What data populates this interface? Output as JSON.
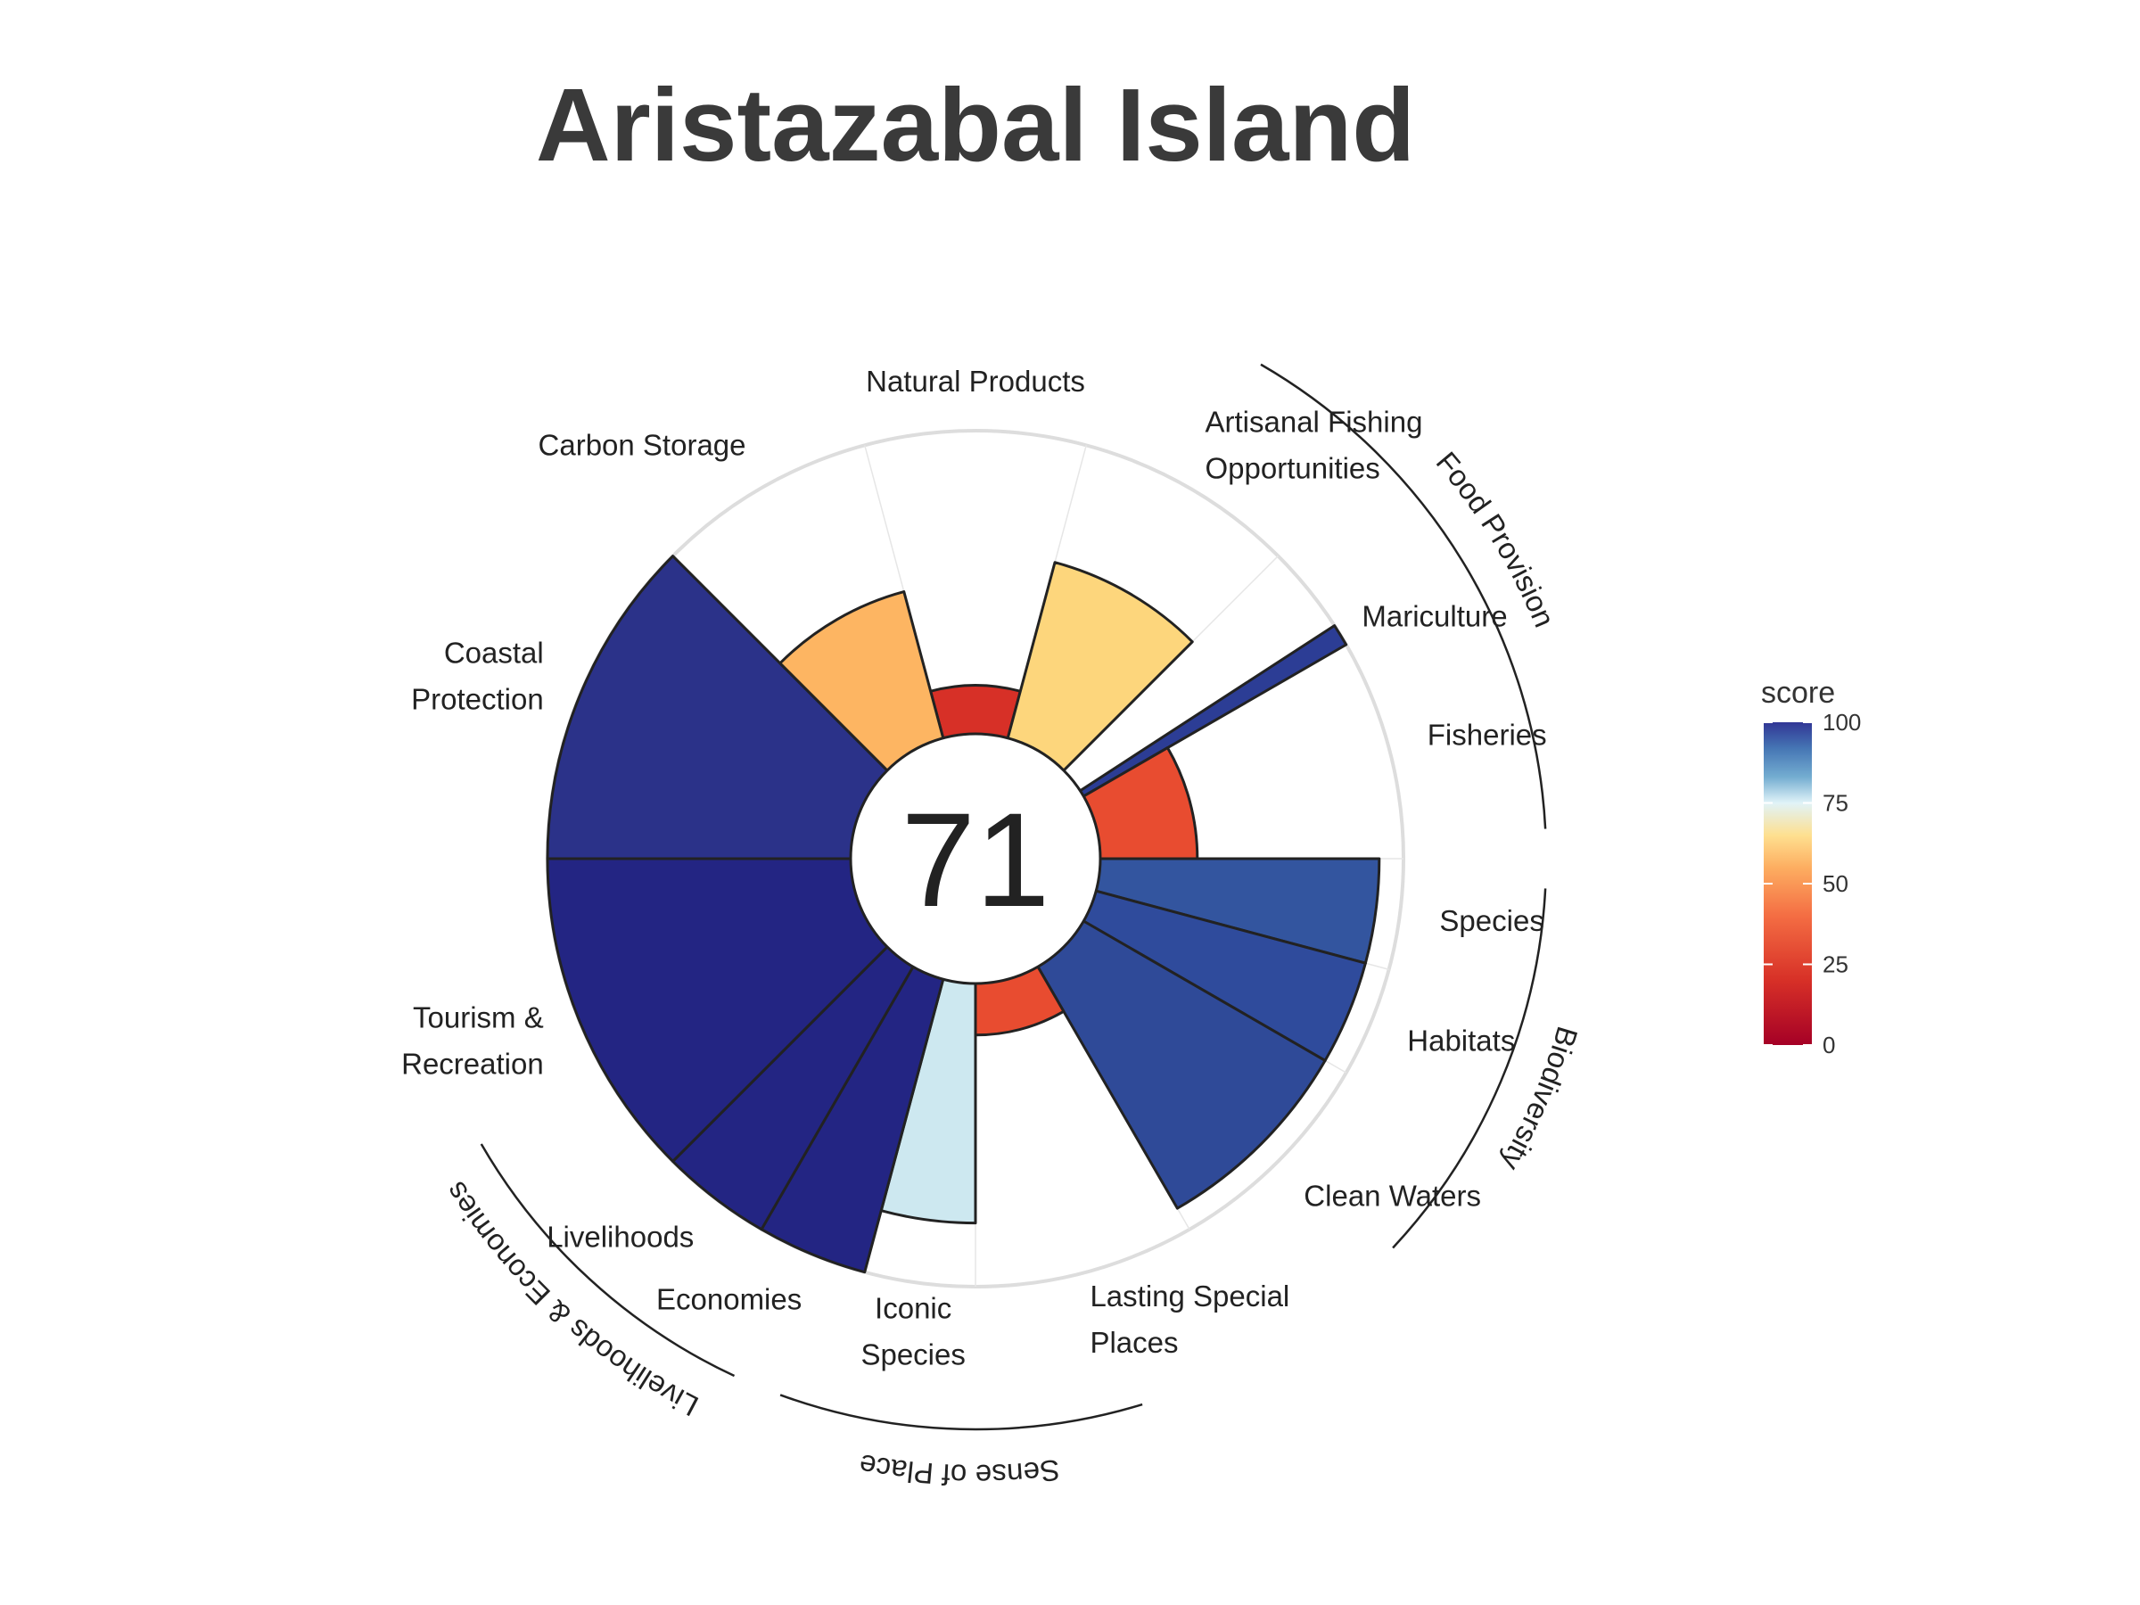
{
  "chart_data": {
    "type": "polar-bar",
    "title": "Aristazabal Island",
    "center_score": "71",
    "rmax": 100,
    "colorscale": {
      "title": "score",
      "ticks": [
        "0",
        "25",
        "50",
        "75",
        "100"
      ],
      "stops": [
        {
          "v": 0,
          "c": "#a50026"
        },
        {
          "v": 20,
          "c": "#d73027"
        },
        {
          "v": 40,
          "c": "#f46d43"
        },
        {
          "v": 55,
          "c": "#fdae61"
        },
        {
          "v": 65,
          "c": "#fee090"
        },
        {
          "v": 75,
          "c": "#e0f3f8"
        },
        {
          "v": 83,
          "c": "#74add1"
        },
        {
          "v": 92,
          "c": "#4575b4"
        },
        {
          "v": 100,
          "c": "#313695"
        }
      ]
    },
    "goals": [
      {
        "label": [
          "Natural Products"
        ],
        "start": -15,
        "end": 15,
        "value": 16,
        "color": "#d73027"
      },
      {
        "label": [
          "Artisanal Fishing",
          "Opportunities"
        ],
        "start": 15,
        "end": 45,
        "value": 60,
        "color": "#fdd67c"
      },
      {
        "label": [
          "Mariculture"
        ],
        "start": 57,
        "end": 60,
        "value": 100,
        "color": "#2c3d95"
      },
      {
        "label": [
          "Fisheries"
        ],
        "start": 60,
        "end": 90,
        "value": 32,
        "color": "#e84c30"
      },
      {
        "label": [
          "Species"
        ],
        "start": 90,
        "end": 105,
        "value": 92,
        "color": "#33559f"
      },
      {
        "label": [
          "Habitats"
        ],
        "start": 105,
        "end": 120,
        "value": 92,
        "color": "#2f4b9c"
      },
      {
        "label": [
          "Clean Waters"
        ],
        "start": 120,
        "end": 150,
        "value": 92,
        "color": "#2f4a98"
      },
      {
        "label": [
          "Lasting Special",
          "Places"
        ],
        "start": 150,
        "end": 180,
        "value": 17,
        "color": "#e84c30"
      },
      {
        "label": [
          "Iconic",
          "Species"
        ],
        "start": 180,
        "end": 195,
        "value": 79,
        "color": "#cde8f0"
      },
      {
        "label": [
          "Economies"
        ],
        "start": 195,
        "end": 210,
        "value": 100,
        "color": "#232583"
      },
      {
        "label": [
          "Livelihoods"
        ],
        "start": 210,
        "end": 225,
        "value": 100,
        "color": "#232583"
      },
      {
        "label": [
          "Tourism &",
          "Recreation"
        ],
        "start": 225,
        "end": 270,
        "value": 100,
        "color": "#232583"
      },
      {
        "label": [
          "Coastal",
          "Protection"
        ],
        "start": 270,
        "end": 315,
        "value": 100,
        "color": "#2b3289"
      },
      {
        "label": [
          "Carbon Storage"
        ],
        "start": 315,
        "end": 345,
        "value": 50,
        "color": "#fdb562"
      }
    ],
    "groups": [
      {
        "label": "Food Provision",
        "start": 30,
        "end": 87
      },
      {
        "label": "Biodiversity",
        "start": 93,
        "end": 133
      },
      {
        "label": "Sense of Place",
        "start": 163,
        "end": 200
      },
      {
        "label": "Livelihoods & Economies",
        "start": 205,
        "end": 240
      }
    ]
  }
}
